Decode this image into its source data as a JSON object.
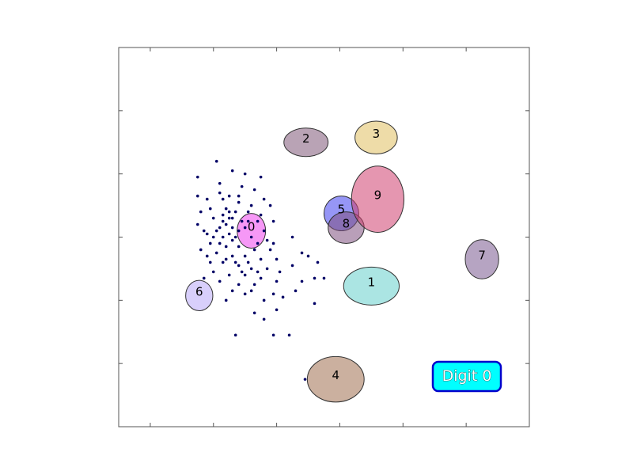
{
  "chart_data": {
    "type": "scatter",
    "title": "",
    "xlabel": "",
    "ylabel": "",
    "xlim": [
      0,
      13
    ],
    "ylim": [
      0,
      12
    ],
    "grid": false,
    "highlight_label": "Digit 0",
    "colors": {
      "points": "#000066",
      "label_box_fill": "#00ffff",
      "label_box_border": "#0000cc"
    },
    "clusters": [
      {
        "label": "0",
        "cx": 4.2,
        "cy": 6.2,
        "rx": 0.45,
        "ry": 0.55,
        "color": "#ee44ee"
      },
      {
        "label": "1",
        "cx": 8.0,
        "cy": 4.45,
        "rx": 0.88,
        "ry": 0.6,
        "color": "#66d0cc"
      },
      {
        "label": "2",
        "cx": 5.93,
        "cy": 9.0,
        "rx": 0.7,
        "ry": 0.45,
        "color": "#805878"
      },
      {
        "label": "3",
        "cx": 8.15,
        "cy": 9.15,
        "rx": 0.67,
        "ry": 0.52,
        "color": "#e0c060"
      },
      {
        "label": "4",
        "cx": 6.87,
        "cy": 1.5,
        "rx": 0.9,
        "ry": 0.72,
        "color": "#a07050"
      },
      {
        "label": "5",
        "cx": 7.05,
        "cy": 6.75,
        "rx": 0.55,
        "ry": 0.55,
        "color": "#4040ee"
      },
      {
        "label": "6",
        "cx": 2.55,
        "cy": 4.15,
        "rx": 0.43,
        "ry": 0.48,
        "color": "#b8a8f8"
      },
      {
        "label": "7",
        "cx": 11.5,
        "cy": 5.3,
        "rx": 0.53,
        "ry": 0.62,
        "color": "#7a5a90"
      },
      {
        "label": "8",
        "cx": 7.2,
        "cy": 6.3,
        "rx": 0.57,
        "ry": 0.5,
        "color": "#805080"
      },
      {
        "label": "9",
        "cx": 8.2,
        "cy": 7.2,
        "rx": 0.83,
        "ry": 1.05,
        "color": "#d04070"
      }
    ],
    "points": [
      [
        3.1,
        8.4
      ],
      [
        3.6,
        8.1
      ],
      [
        4.0,
        8.0
      ],
      [
        4.5,
        7.9
      ],
      [
        2.5,
        7.9
      ],
      [
        3.2,
        7.7
      ],
      [
        3.9,
        7.6
      ],
      [
        4.3,
        7.5
      ],
      [
        2.5,
        7.3
      ],
      [
        2.8,
        7.2
      ],
      [
        3.3,
        7.2
      ],
      [
        3.8,
        7.1
      ],
      [
        4.2,
        7.0
      ],
      [
        4.8,
        7.0
      ],
      [
        2.9,
        6.9
      ],
      [
        3.4,
        6.9
      ],
      [
        3.7,
        6.8
      ],
      [
        4.1,
        6.8
      ],
      [
        4.5,
        6.7
      ],
      [
        3.0,
        6.6
      ],
      [
        3.5,
        6.6
      ],
      [
        3.9,
        6.5
      ],
      [
        4.4,
        6.5
      ],
      [
        4.9,
        6.5
      ],
      [
        2.5,
        6.4
      ],
      [
        3.2,
        6.3
      ],
      [
        3.6,
        6.3
      ],
      [
        4.0,
        6.3
      ],
      [
        4.6,
        6.2
      ],
      [
        2.8,
        6.1
      ],
      [
        3.3,
        6.0
      ],
      [
        3.7,
        6.0
      ],
      [
        4.2,
        6.0
      ],
      [
        4.7,
        5.9
      ],
      [
        5.5,
        6.0
      ],
      [
        2.9,
        5.8
      ],
      [
        3.4,
        5.7
      ],
      [
        3.8,
        5.7
      ],
      [
        4.3,
        5.6
      ],
      [
        4.8,
        5.6
      ],
      [
        2.6,
        5.6
      ],
      [
        3.1,
        5.5
      ],
      [
        3.6,
        5.4
      ],
      [
        4.0,
        5.4
      ],
      [
        4.5,
        5.3
      ],
      [
        5.0,
        5.3
      ],
      [
        5.8,
        5.5
      ],
      [
        6.0,
        5.4
      ],
      [
        2.9,
        5.2
      ],
      [
        3.3,
        5.2
      ],
      [
        3.8,
        5.1
      ],
      [
        4.2,
        5.0
      ],
      [
        4.7,
        5.0
      ],
      [
        5.5,
        5.1
      ],
      [
        6.3,
        5.2
      ],
      [
        3.0,
        4.9
      ],
      [
        3.5,
        4.8
      ],
      [
        4.0,
        4.8
      ],
      [
        4.5,
        4.7
      ],
      [
        2.7,
        4.7
      ],
      [
        3.8,
        4.5
      ],
      [
        5.0,
        4.6
      ],
      [
        5.8,
        4.6
      ],
      [
        6.2,
        4.7
      ],
      [
        3.6,
        4.3
      ],
      [
        4.2,
        4.3
      ],
      [
        4.9,
        4.2
      ],
      [
        5.6,
        4.3
      ],
      [
        6.5,
        4.7
      ],
      [
        3.4,
        4.0
      ],
      [
        4.6,
        4.0
      ],
      [
        5.2,
        4.1
      ],
      [
        6.2,
        3.9
      ],
      [
        4.3,
        3.6
      ],
      [
        5.0,
        3.7
      ],
      [
        4.6,
        3.4
      ],
      [
        3.7,
        2.9
      ],
      [
        4.9,
        2.9
      ],
      [
        5.4,
        2.9
      ],
      [
        5.9,
        1.5
      ],
      [
        3.2,
        7.4
      ],
      [
        3.5,
        7.3
      ],
      [
        2.6,
        6.8
      ],
      [
        3.1,
        6.2
      ],
      [
        3.3,
        6.7
      ],
      [
        3.6,
        6.6
      ],
      [
        3.4,
        6.4
      ],
      [
        2.7,
        6.2
      ],
      [
        3.0,
        6.0
      ],
      [
        3.5,
        6.1
      ],
      [
        3.8,
        6.2
      ],
      [
        4.1,
        6.5
      ],
      [
        2.8,
        5.4
      ],
      [
        3.2,
        5.8
      ],
      [
        3.6,
        5.9
      ],
      [
        4.4,
        5.8
      ],
      [
        4.1,
        5.2
      ],
      [
        3.4,
        5.3
      ],
      [
        4.4,
        4.9
      ],
      [
        3.9,
        4.9
      ],
      [
        3.2,
        4.6
      ],
      [
        4.3,
        4.5
      ],
      [
        5.1,
        4.9
      ],
      [
        4.0,
        4.2
      ],
      [
        3.5,
        6.8
      ],
      [
        3.8,
        7.3
      ],
      [
        4.6,
        7.2
      ],
      [
        3.7,
        5.2
      ],
      [
        4.9,
        5.8
      ],
      [
        3.3,
        6.5
      ]
    ]
  }
}
